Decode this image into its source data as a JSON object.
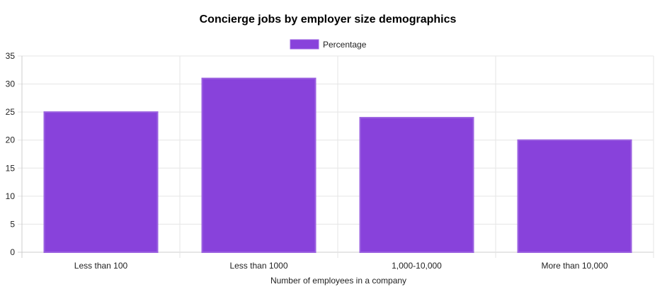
{
  "chart_data": {
    "type": "bar",
    "title": "Concierge jobs by employer size demographics",
    "xlabel": "Number of employees in a company",
    "ylabel": "",
    "categories": [
      "Less than 100",
      "Less than 1000",
      "1,000-10,000",
      "More than 10,000"
    ],
    "series": [
      {
        "name": "Percentage",
        "values": [
          25,
          31,
          24,
          20
        ]
      }
    ],
    "ylim": [
      0,
      35
    ],
    "yticks": [
      0,
      5,
      10,
      15,
      20,
      25,
      30,
      35
    ],
    "grid": true,
    "legend_position": "top-center",
    "colors": {
      "bar_fill": "#8842db",
      "bar_border": "#9b62e0",
      "grid": "#e5e5e5",
      "axis": "#cccccc"
    }
  }
}
